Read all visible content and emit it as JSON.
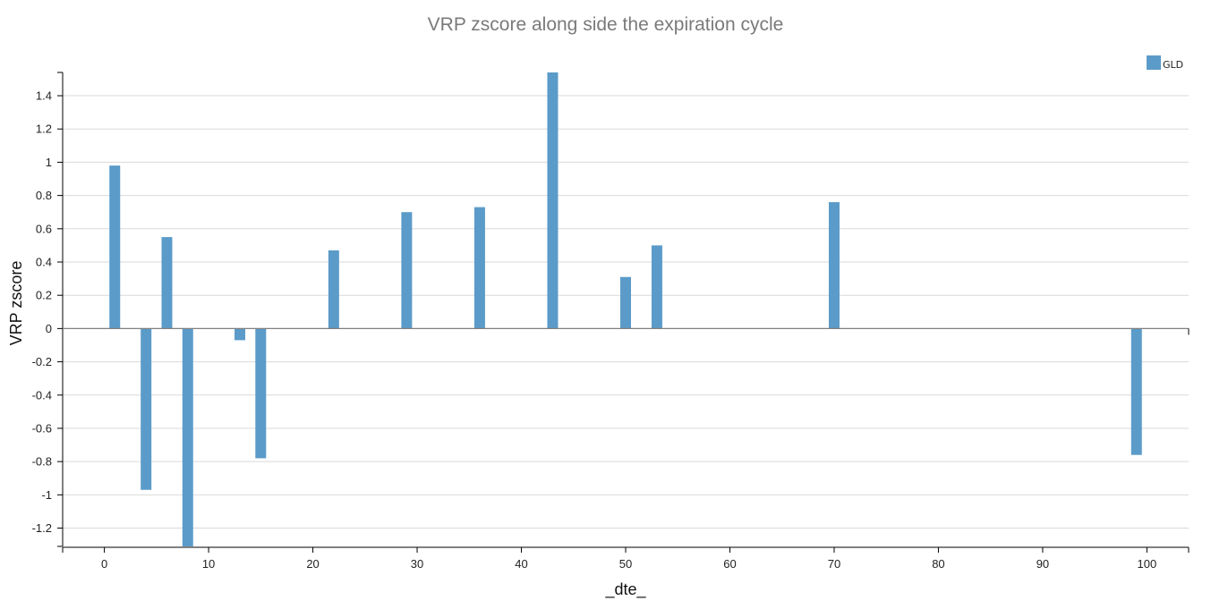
{
  "chart_data": {
    "type": "bar",
    "title": "VRP zscore along side the expiration cycle",
    "xlabel": "_dte_",
    "ylabel": "VRP zscore",
    "xlim": [
      -4,
      104
    ],
    "ylim": [
      -1.31,
      1.54
    ],
    "x_ticks": [
      0,
      10,
      20,
      30,
      40,
      50,
      60,
      70,
      80,
      90,
      100
    ],
    "x_tick_labels": [
      "0",
      "10",
      "20",
      "30",
      "40",
      "50",
      "60",
      "70",
      "80",
      "90",
      "100"
    ],
    "y_ticks": [
      1.4,
      1.2,
      1,
      0.8,
      0.6,
      0.4,
      0.2,
      0,
      -0.2,
      -0.4,
      -0.6,
      -0.8,
      -1,
      -1.2
    ],
    "y_tick_labels": [
      "1.4",
      "1.2",
      "1",
      "0.8",
      "0.6",
      "0.4",
      "0.2",
      "0",
      "-0.2",
      "-0.4",
      "-0.6",
      "-0.8",
      "-1",
      "-1.2"
    ],
    "grid": "horizontal",
    "legend_position": "top-right",
    "series": [
      {
        "name": "GLD",
        "color": "#5b9bc9",
        "x": [
          1,
          4,
          6,
          8,
          13,
          15,
          22,
          29,
          36,
          43,
          50,
          53,
          70,
          99
        ],
        "values": [
          0.98,
          -0.97,
          0.55,
          -1.31,
          -0.07,
          -0.78,
          0.47,
          0.7,
          0.73,
          1.54,
          0.31,
          0.5,
          0.76,
          -0.76
        ]
      }
    ]
  }
}
